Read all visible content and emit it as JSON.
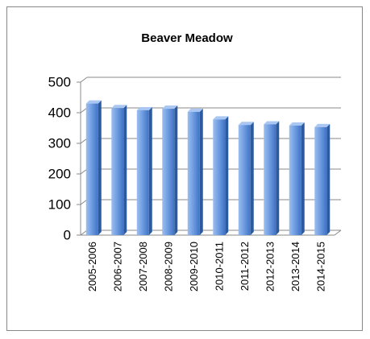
{
  "chart_data": {
    "type": "bar",
    "title": "Beaver Meadow",
    "categories": [
      "2005-2006",
      "2006-2007",
      "2007-2008",
      "2008-2009",
      "2009-2010",
      "2010-2011",
      "2011-2012",
      "2012-2013",
      "2013-2014",
      "2014-2015"
    ],
    "values": [
      430,
      415,
      408,
      413,
      403,
      378,
      360,
      362,
      358,
      353
    ],
    "color": "#4f81bd",
    "ylim": [
      0,
      500
    ],
    "yticks": [
      0,
      100,
      200,
      300,
      400,
      500
    ],
    "grid": true
  }
}
